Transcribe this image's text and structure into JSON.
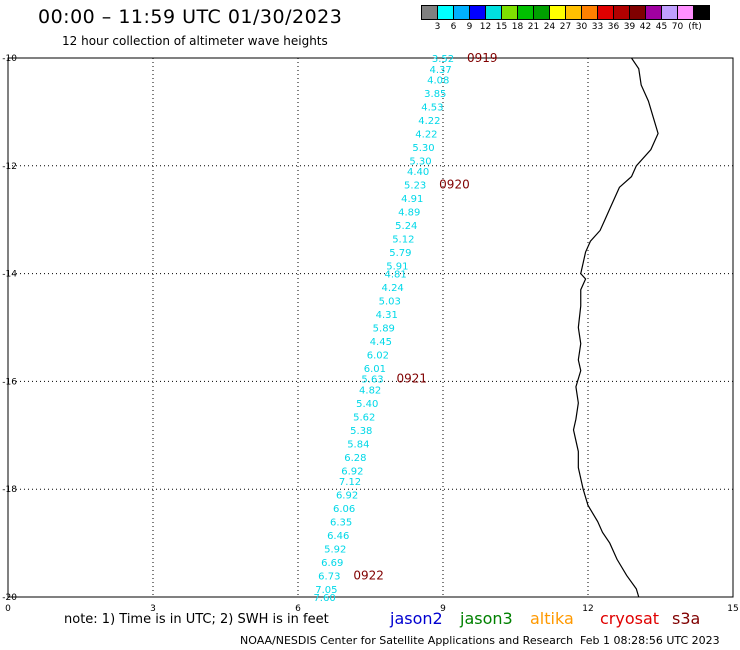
{
  "header": {
    "title": "00:00 – 11:59 UTC 01/30/2023",
    "subtitle": "12 hour collection of altimeter wave heights"
  },
  "colorbar": {
    "colors": [
      "#808080",
      "#00ffff",
      "#00b0ff",
      "#0000ff",
      "#00e0e0",
      "#7fe000",
      "#00c000",
      "#00a000",
      "#ffff00",
      "#ffc000",
      "#ff8000",
      "#e00000",
      "#b00000",
      "#800000",
      "#a000a0",
      "#c0a0ff",
      "#ff90ff",
      "#000000"
    ],
    "labels": [
      "3",
      "6",
      "9",
      "12",
      "15",
      "18",
      "21",
      "24",
      "27",
      "30",
      "33",
      "36",
      "39",
      "42",
      "45",
      "70"
    ],
    "unit": "(ft)"
  },
  "map": {
    "x_ticks": [
      "0",
      "3",
      "6",
      "9",
      "12",
      "15"
    ],
    "y_ticks": [
      "-10",
      "-12",
      "-14",
      "-16",
      "-18",
      "-20"
    ],
    "wave_color": "#00d8e8",
    "time_color": "#800000",
    "track": [
      {
        "lat": -10.0,
        "value": "3.52"
      },
      {
        "lat": -10.2,
        "value": "4.37"
      },
      {
        "lat": -10.4,
        "value": "4.08"
      },
      {
        "lat": -10.65,
        "value": "3.85"
      },
      {
        "lat": -10.9,
        "value": "4.53"
      },
      {
        "lat": -11.15,
        "value": "4.22"
      },
      {
        "lat": -11.4,
        "value": "4.22"
      },
      {
        "lat": -11.65,
        "value": "5.30"
      },
      {
        "lat": -11.9,
        "value": "5.30"
      },
      {
        "lat": -12.1,
        "value": "4.40"
      },
      {
        "lat": -12.35,
        "value": "5.23"
      },
      {
        "lat": -12.6,
        "value": "4.91"
      },
      {
        "lat": -12.85,
        "value": "4.89"
      },
      {
        "lat": -13.1,
        "value": "5.24"
      },
      {
        "lat": -13.35,
        "value": "5.12"
      },
      {
        "lat": -13.6,
        "value": "5.79"
      },
      {
        "lat": -13.85,
        "value": "5.91"
      },
      {
        "lat": -14.0,
        "value": "4.81"
      },
      {
        "lat": -14.25,
        "value": "4.24"
      },
      {
        "lat": -14.5,
        "value": "5.03"
      },
      {
        "lat": -14.75,
        "value": "4.31"
      },
      {
        "lat": -15.0,
        "value": "5.89"
      },
      {
        "lat": -15.25,
        "value": "4.45"
      },
      {
        "lat": -15.5,
        "value": "6.02"
      },
      {
        "lat": -15.75,
        "value": "6.01"
      },
      {
        "lat": -15.95,
        "value": "5.63"
      },
      {
        "lat": -16.15,
        "value": "4.82"
      },
      {
        "lat": -16.4,
        "value": "5.40"
      },
      {
        "lat": -16.65,
        "value": "5.62"
      },
      {
        "lat": -16.9,
        "value": "5.38"
      },
      {
        "lat": -17.15,
        "value": "5.84"
      },
      {
        "lat": -17.4,
        "value": "6.28"
      },
      {
        "lat": -17.65,
        "value": "6.92"
      },
      {
        "lat": -17.85,
        "value": "7.12"
      },
      {
        "lat": -18.1,
        "value": "6.92"
      },
      {
        "lat": -18.35,
        "value": "6.06"
      },
      {
        "lat": -18.6,
        "value": "6.35"
      },
      {
        "lat": -18.85,
        "value": "6.46"
      },
      {
        "lat": -19.1,
        "value": "5.92"
      },
      {
        "lat": -19.35,
        "value": "6.69"
      },
      {
        "lat": -19.6,
        "value": "6.73"
      },
      {
        "lat": -19.85,
        "value": "7.05"
      },
      {
        "lat": -20.0,
        "value": "7.60"
      }
    ],
    "times": [
      {
        "label": "0919",
        "lat": -10.0
      },
      {
        "label": "0920",
        "lat": -12.35
      },
      {
        "label": "0921",
        "lat": -15.95
      },
      {
        "label": "0922",
        "lat": -19.6
      }
    ]
  },
  "legend": {
    "note": "note: 1) Time is in UTC; 2) SWH is in feet",
    "satellites": [
      {
        "name": "jason2",
        "color": "#0000d0"
      },
      {
        "name": "jason3",
        "color": "#008000"
      },
      {
        "name": "altika",
        "color": "#ff9900"
      },
      {
        "name": "cryosat",
        "color": "#e00000"
      },
      {
        "name": "s3a",
        "color": "#800000"
      }
    ]
  },
  "footer": {
    "credit": "NOAA/NESDIS Center for Satellite Applications and Research",
    "date": "Feb  1 08:28:56 UTC 2023"
  }
}
